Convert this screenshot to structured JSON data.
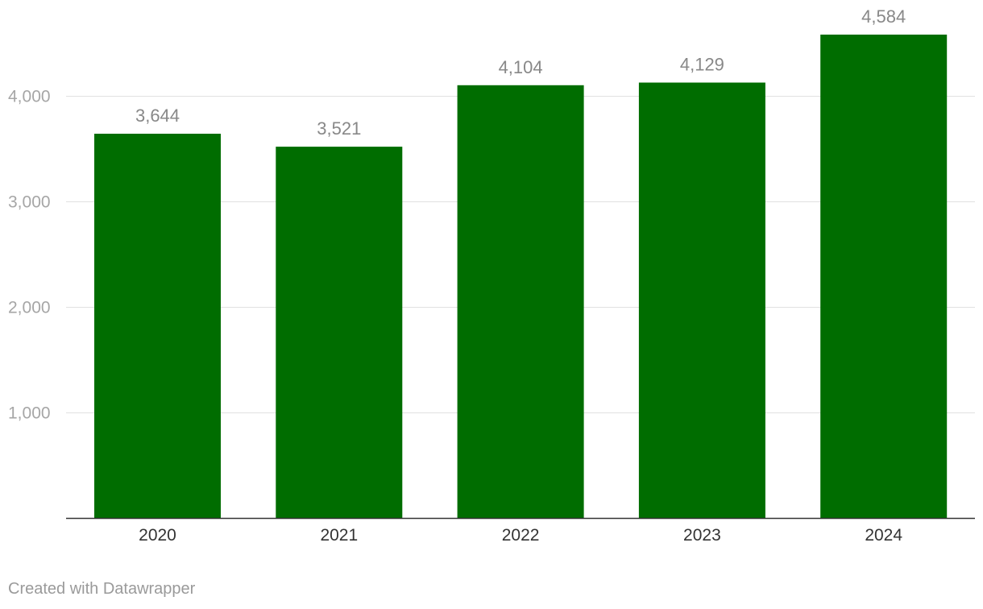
{
  "chart_data": {
    "type": "bar",
    "categories": [
      "2020",
      "2021",
      "2022",
      "2023",
      "2024"
    ],
    "values": [
      3644,
      3521,
      4104,
      4129,
      4584
    ],
    "value_labels": [
      "3,644",
      "3,521",
      "4,104",
      "4,129",
      "4,584"
    ],
    "yticks": [
      1000,
      2000,
      3000,
      4000
    ],
    "ytick_labels": [
      "1,000",
      "2,000",
      "3,000",
      "4,000"
    ],
    "ylim": [
      0,
      4600
    ],
    "grid": true,
    "bar_color": "#006d00"
  },
  "footer": {
    "credit": "Created with Datawrapper"
  }
}
